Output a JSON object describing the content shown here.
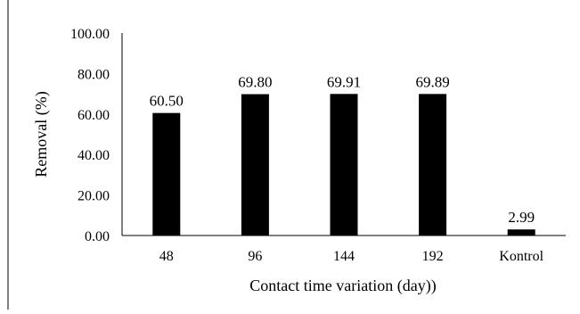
{
  "chart_data": {
    "type": "bar",
    "categories": [
      "48",
      "96",
      "144",
      "192",
      "Kontrol"
    ],
    "values": [
      60.5,
      69.8,
      69.91,
      69.89,
      2.99
    ],
    "data_labels": [
      "60.50",
      "69.80",
      "69.91",
      "69.89",
      "2.99"
    ],
    "title": "",
    "xlabel": "Contact time variation (day))",
    "ylabel": "Removal (%)",
    "ylim": [
      0,
      100
    ],
    "y_ticks": [
      "0.00",
      "20.00",
      "40.00",
      "60.00",
      "80.00",
      "100.00"
    ],
    "grid": false,
    "legend": "none",
    "bar_color": "#000000",
    "axis_color": "#000000"
  }
}
